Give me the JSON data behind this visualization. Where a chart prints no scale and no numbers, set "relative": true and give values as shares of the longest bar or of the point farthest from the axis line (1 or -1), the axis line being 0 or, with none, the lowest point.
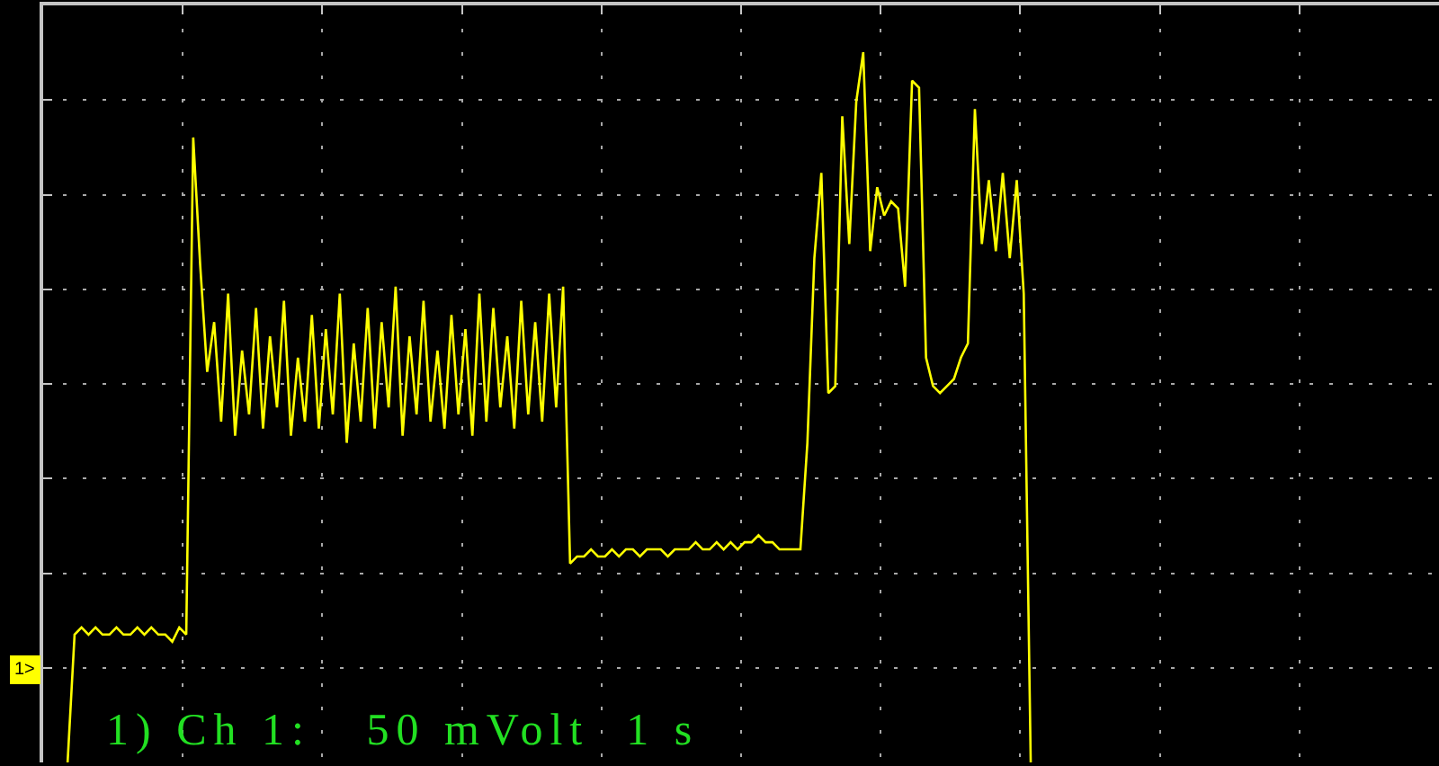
{
  "chart_data": {
    "type": "line",
    "relative": true,
    "grid": true,
    "marker": "none",
    "line_style": "solid",
    "color": "#ffff00",
    "annotations": [
      "1) Ch 1:   50 mVolt  1 s",
      {
        "text": "1>",
        "y": 0.13
      }
    ],
    "categories": [
      null,
      null,
      null,
      null,
      null,
      null,
      null,
      null,
      null,
      null,
      null,
      null,
      null,
      null,
      null,
      null,
      null,
      null,
      null,
      null,
      null,
      null,
      null,
      null,
      null,
      null,
      null,
      null,
      null,
      null,
      null,
      null,
      null,
      null,
      null,
      null,
      null,
      null,
      null,
      null,
      null,
      null,
      null,
      null,
      null,
      null,
      null,
      null,
      null,
      null,
      null,
      null,
      null,
      null,
      null,
      null,
      null,
      null,
      null,
      null,
      null,
      null,
      null,
      null,
      null,
      null,
      null,
      null,
      null,
      null,
      null,
      null,
      null,
      null,
      null,
      null,
      null,
      null,
      null,
      null,
      null,
      null,
      null,
      null,
      null,
      null,
      null,
      null,
      null,
      null,
      null,
      null,
      null,
      null,
      null,
      null,
      null,
      null,
      null,
      null,
      null,
      null,
      null,
      null,
      null,
      null,
      null,
      null,
      null,
      null,
      null,
      null,
      null,
      null,
      null,
      null,
      null,
      null,
      null,
      null,
      null,
      null,
      null,
      null,
      null,
      null,
      null,
      null,
      null,
      null,
      null,
      null,
      null,
      null,
      null,
      null,
      null,
      null,
      null,
      null,
      null,
      null,
      null,
      null,
      null,
      null,
      null,
      null,
      null,
      null,
      null,
      null,
      null,
      null,
      null,
      null,
      null,
      null,
      null,
      null,
      null,
      null,
      null,
      null,
      null,
      null,
      null,
      null,
      null,
      null,
      null,
      null,
      null,
      null,
      null,
      null,
      null,
      null,
      null,
      null,
      null,
      null,
      null,
      null,
      null,
      null,
      null,
      null,
      null,
      null,
      null,
      null,
      null,
      null,
      null,
      null,
      null,
      null,
      null,
      null
    ],
    "values": [
      null,
      null,
      null,
      0,
      0.18,
      0.19,
      0.18,
      0.19,
      0.18,
      0.18,
      0.19,
      0.18,
      0.18,
      0.19,
      0.18,
      0.19,
      0.18,
      0.18,
      0.17,
      0.19,
      0.18,
      0.88,
      0.7,
      0.55,
      0.62,
      0.48,
      0.66,
      0.46,
      0.58,
      0.49,
      0.64,
      0.47,
      0.6,
      0.5,
      0.65,
      0.46,
      0.57,
      0.48,
      0.63,
      0.47,
      0.61,
      0.49,
      0.66,
      0.45,
      0.59,
      0.48,
      0.64,
      0.47,
      0.62,
      0.5,
      0.67,
      0.46,
      0.6,
      0.49,
      0.65,
      0.48,
      0.58,
      0.47,
      0.63,
      0.49,
      0.61,
      0.46,
      0.66,
      0.48,
      0.64,
      0.5,
      0.6,
      0.47,
      0.65,
      0.49,
      0.62,
      0.48,
      0.66,
      0.5,
      0.67,
      0.28,
      0.29,
      0.29,
      0.3,
      0.29,
      0.29,
      0.3,
      0.29,
      0.3,
      0.3,
      0.29,
      0.3,
      0.3,
      0.3,
      0.29,
      0.3,
      0.3,
      0.3,
      0.31,
      0.3,
      0.3,
      0.31,
      0.3,
      0.31,
      0.3,
      0.31,
      0.31,
      0.32,
      0.31,
      0.31,
      0.3,
      0.3,
      0.3,
      0.3,
      0.45,
      0.71,
      0.83,
      0.52,
      0.53,
      0.91,
      0.73,
      0.93,
      1,
      0.72,
      0.81,
      0.77,
      0.79,
      0.78,
      0.67,
      0.96,
      0.95,
      0.57,
      0.53,
      0.52,
      0.53,
      0.54,
      0.57,
      0.59,
      0.92,
      0.73,
      0.82,
      0.72,
      0.83,
      0.71,
      0.82,
      0.66,
      0,
      null,
      null,
      null,
      null,
      null,
      null,
      null,
      null,
      null,
      null,
      null,
      null,
      null,
      null,
      null,
      null,
      null,
      null,
      null,
      null,
      null,
      null,
      null,
      null,
      null,
      null,
      null,
      null,
      null,
      null,
      null,
      null,
      null,
      null,
      null,
      null,
      null,
      null,
      null,
      null,
      null,
      null,
      null,
      null,
      null,
      null,
      null,
      null,
      null,
      null,
      null,
      null,
      null,
      null,
      null,
      null,
      null,
      null
    ]
  }
}
